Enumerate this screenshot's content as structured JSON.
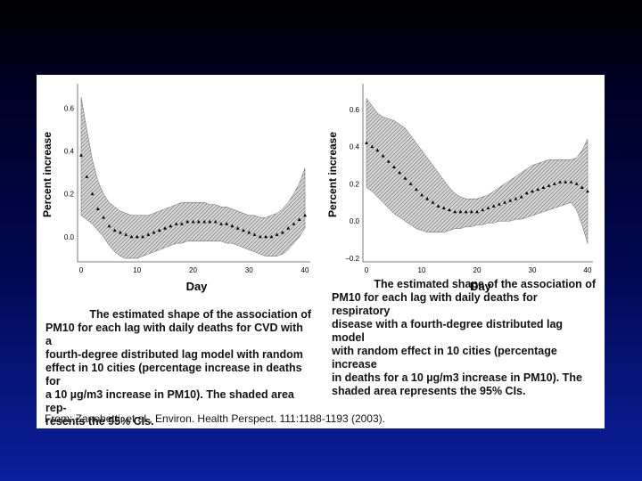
{
  "chart_data": [
    {
      "type": "line",
      "name": "cvd",
      "xlabel": "Day",
      "ylabel": "Percent increase",
      "xlim": [
        0,
        40
      ],
      "ylim": [
        -0.1,
        0.68
      ],
      "xticks": [
        0,
        10,
        20,
        30,
        40
      ],
      "yticks": [
        0.0,
        0.2,
        0.4,
        0.6
      ],
      "ytick_labels": [
        "0.0",
        "0.2",
        "0.4",
        "0.6"
      ],
      "series": [
        {
          "name": "Estimate",
          "x": [
            0,
            1,
            2,
            3,
            4,
            5,
            6,
            7,
            8,
            9,
            10,
            11,
            12,
            13,
            14,
            15,
            16,
            17,
            18,
            19,
            20,
            21,
            22,
            23,
            24,
            25,
            26,
            27,
            28,
            29,
            30,
            31,
            32,
            33,
            34,
            35,
            36,
            37,
            38,
            39,
            40
          ],
          "values": [
            0.38,
            0.28,
            0.2,
            0.13,
            0.09,
            0.05,
            0.03,
            0.02,
            0.01,
            0.0,
            0.0,
            0.0,
            0.01,
            0.02,
            0.03,
            0.04,
            0.05,
            0.06,
            0.06,
            0.07,
            0.07,
            0.07,
            0.07,
            0.07,
            0.07,
            0.06,
            0.06,
            0.05,
            0.04,
            0.03,
            0.02,
            0.01,
            0.0,
            0.0,
            0.0,
            0.01,
            0.02,
            0.04,
            0.06,
            0.08,
            0.1
          ]
        },
        {
          "name": "95% CI upper",
          "x": [
            0,
            1,
            2,
            3,
            4,
            5,
            6,
            7,
            8,
            9,
            10,
            11,
            12,
            13,
            14,
            15,
            16,
            17,
            18,
            19,
            20,
            21,
            22,
            23,
            24,
            25,
            26,
            27,
            28,
            29,
            30,
            31,
            32,
            33,
            34,
            35,
            36,
            37,
            38,
            39,
            40
          ],
          "values": [
            0.65,
            0.5,
            0.36,
            0.26,
            0.2,
            0.16,
            0.14,
            0.12,
            0.11,
            0.1,
            0.1,
            0.1,
            0.1,
            0.11,
            0.12,
            0.13,
            0.14,
            0.15,
            0.16,
            0.16,
            0.16,
            0.16,
            0.16,
            0.15,
            0.15,
            0.14,
            0.14,
            0.13,
            0.12,
            0.11,
            0.1,
            0.1,
            0.09,
            0.09,
            0.1,
            0.11,
            0.13,
            0.16,
            0.2,
            0.25,
            0.32
          ]
        },
        {
          "name": "95% CI lower",
          "x": [
            0,
            1,
            2,
            3,
            4,
            5,
            6,
            7,
            8,
            9,
            10,
            11,
            12,
            13,
            14,
            15,
            16,
            17,
            18,
            19,
            20,
            21,
            22,
            23,
            24,
            25,
            26,
            27,
            28,
            29,
            30,
            31,
            32,
            33,
            34,
            35,
            36,
            37,
            38,
            39,
            40
          ],
          "values": [
            0.1,
            0.08,
            0.06,
            0.03,
            0.0,
            -0.04,
            -0.07,
            -0.09,
            -0.1,
            -0.1,
            -0.1,
            -0.09,
            -0.08,
            -0.07,
            -0.06,
            -0.05,
            -0.04,
            -0.03,
            -0.03,
            -0.02,
            -0.02,
            -0.02,
            -0.02,
            -0.02,
            -0.02,
            -0.02,
            -0.03,
            -0.03,
            -0.04,
            -0.05,
            -0.06,
            -0.07,
            -0.08,
            -0.09,
            -0.09,
            -0.09,
            -0.08,
            -0.06,
            -0.03,
            0.0,
            0.04
          ]
        }
      ],
      "caption_lines": [
        "The estimated shape of the association of",
        "PM10 for each lag with daily deaths for CVD with a",
        "fourth-degree distributed lag model with random",
        "effect in 10 cities (percentage increase in deaths for",
        "a 10 µg/m3 increase in PM10). The shaded area rep-",
        "resents the 95% CIs."
      ]
    },
    {
      "type": "line",
      "name": "respiratory",
      "xlabel": "Day",
      "ylabel": "Percent increase",
      "xlim": [
        0,
        40
      ],
      "ylim": [
        -0.2,
        0.7
      ],
      "xticks": [
        0,
        10,
        20,
        30,
        40
      ],
      "yticks": [
        -0.2,
        0.0,
        0.2,
        0.4,
        0.6
      ],
      "ytick_labels": [
        "−0.2",
        "0.0",
        "0.2",
        "0.4",
        "0.6"
      ],
      "series": [
        {
          "name": "Estimate",
          "x": [
            0,
            1,
            2,
            3,
            4,
            5,
            6,
            7,
            8,
            9,
            10,
            11,
            12,
            13,
            14,
            15,
            16,
            17,
            18,
            19,
            20,
            21,
            22,
            23,
            24,
            25,
            26,
            27,
            28,
            29,
            30,
            31,
            32,
            33,
            34,
            35,
            36,
            37,
            38,
            39,
            40
          ],
          "values": [
            0.42,
            0.4,
            0.38,
            0.35,
            0.32,
            0.29,
            0.26,
            0.23,
            0.2,
            0.17,
            0.14,
            0.12,
            0.1,
            0.08,
            0.07,
            0.06,
            0.05,
            0.05,
            0.05,
            0.05,
            0.05,
            0.06,
            0.07,
            0.08,
            0.09,
            0.1,
            0.11,
            0.12,
            0.13,
            0.15,
            0.16,
            0.17,
            0.18,
            0.19,
            0.2,
            0.21,
            0.21,
            0.21,
            0.2,
            0.18,
            0.16
          ]
        },
        {
          "name": "95% CI upper",
          "x": [
            0,
            1,
            2,
            3,
            4,
            5,
            6,
            7,
            8,
            9,
            10,
            11,
            12,
            13,
            14,
            15,
            16,
            17,
            18,
            19,
            20,
            21,
            22,
            23,
            24,
            25,
            26,
            27,
            28,
            29,
            30,
            31,
            32,
            33,
            34,
            35,
            36,
            37,
            38,
            39,
            40
          ],
          "values": [
            0.66,
            0.62,
            0.58,
            0.56,
            0.55,
            0.54,
            0.52,
            0.5,
            0.46,
            0.42,
            0.38,
            0.34,
            0.3,
            0.26,
            0.22,
            0.18,
            0.15,
            0.13,
            0.12,
            0.12,
            0.12,
            0.13,
            0.14,
            0.16,
            0.18,
            0.2,
            0.22,
            0.24,
            0.26,
            0.28,
            0.3,
            0.31,
            0.32,
            0.33,
            0.33,
            0.33,
            0.33,
            0.33,
            0.34,
            0.38,
            0.44
          ]
        },
        {
          "name": "95% CI lower",
          "x": [
            0,
            1,
            2,
            3,
            4,
            5,
            6,
            7,
            8,
            9,
            10,
            11,
            12,
            13,
            14,
            15,
            16,
            17,
            18,
            19,
            20,
            21,
            22,
            23,
            24,
            25,
            26,
            27,
            28,
            29,
            30,
            31,
            32,
            33,
            34,
            35,
            36,
            37,
            38,
            39,
            40
          ],
          "values": [
            0.18,
            0.16,
            0.13,
            0.1,
            0.07,
            0.04,
            0.02,
            0.0,
            -0.02,
            -0.04,
            -0.05,
            -0.06,
            -0.06,
            -0.06,
            -0.06,
            -0.05,
            -0.04,
            -0.04,
            -0.03,
            -0.03,
            -0.02,
            -0.02,
            -0.01,
            -0.01,
            0.0,
            0.0,
            0.0,
            0.01,
            0.01,
            0.02,
            0.03,
            0.04,
            0.05,
            0.06,
            0.07,
            0.08,
            0.09,
            0.1,
            0.06,
            -0.02,
            -0.12
          ]
        }
      ],
      "caption_lines": [
        "The estimated shape of the association of",
        "PM10 for each lag with daily deaths for respiratory",
        "disease with a fourth-degree distributed lag model",
        "with random effect in 10 cities (percentage increase",
        "in deaths for a 10 µg/m3 increase in PM10). The",
        "shaded area represents the 95% CIs."
      ]
    }
  ],
  "source_text": "From:  Zanobetti, et al., Environ. Health Perspect. 111:1188-1193 (2003).",
  "colors": {
    "band_fill": "#aaaaaa",
    "marker": "#000000",
    "panel": "#ffffff"
  }
}
